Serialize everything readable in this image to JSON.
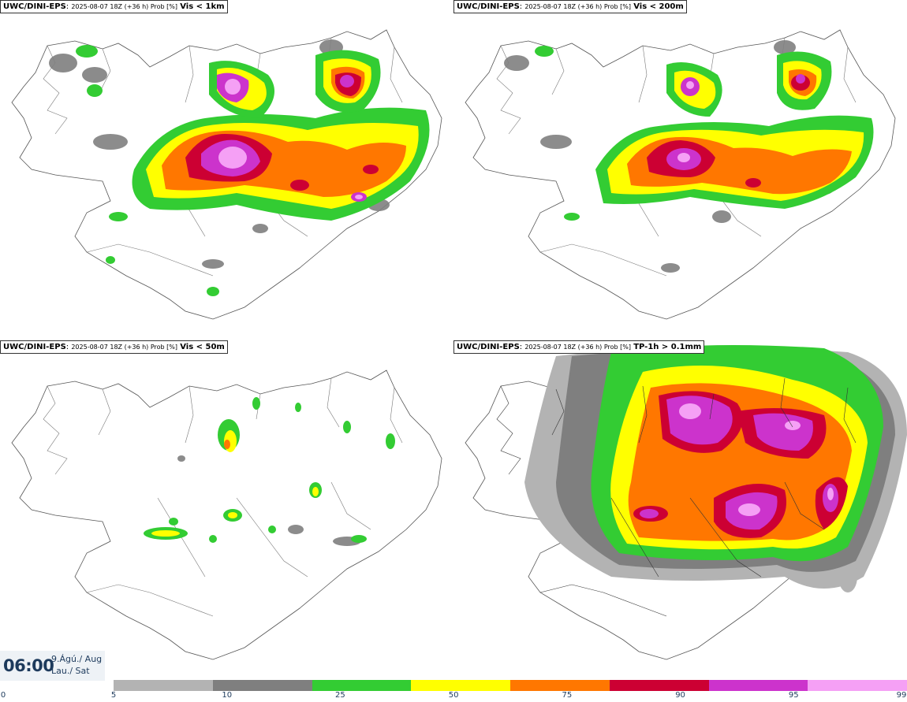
{
  "panels": [
    {
      "model": "UWC/DINI-EPS",
      "meta": "2025-08-07 18Z (+36 h) Prob [%]",
      "variable": "Vis < 1km"
    },
    {
      "model": "UWC/DINI-EPS",
      "meta": "2025-08-07 18Z (+36 h) Prob [%]",
      "variable": "Vis < 200m"
    },
    {
      "model": "UWC/DINI-EPS",
      "meta": "2025-08-07 18Z (+36 h) Prob [%]",
      "variable": "Vis < 50m"
    },
    {
      "model": "UWC/DINI-EPS",
      "meta": "2025-08-07 18Z (+36 h) Prob [%]",
      "variable": "TP-1h > 0.1mm"
    }
  ],
  "time": {
    "clock": "06:00",
    "date_line": "9.Ágú./ Aug",
    "day_line": "Lau./ Sat"
  },
  "colorbar": {
    "ticks": [
      "0",
      "5",
      "10",
      "25",
      "50",
      "75",
      "90",
      "95",
      "99"
    ],
    "bins": [
      {
        "from": 5,
        "to": 10,
        "color": "#b3b3b3"
      },
      {
        "from": 10,
        "to": 25,
        "color": "#7f7f7f"
      },
      {
        "from": 25,
        "to": 50,
        "color": "#33cc33"
      },
      {
        "from": 50,
        "to": 75,
        "color": "#ffff00"
      },
      {
        "from": 75,
        "to": 90,
        "color": "#ff7700"
      },
      {
        "from": 90,
        "to": 95,
        "color": "#cc0033"
      },
      {
        "from": 95,
        "to": 99,
        "color": "#cc33cc"
      },
      {
        "from": 99,
        "to": 100,
        "color": "#f5a0f5"
      }
    ]
  },
  "colors": {
    "p5": "#b3b3b3",
    "p10": "#7f7f7f",
    "p25": "#33cc33",
    "p50": "#ffff00",
    "p75": "#ff7700",
    "p90": "#cc0033",
    "p95": "#cc33cc",
    "p99": "#f5a0f5"
  }
}
